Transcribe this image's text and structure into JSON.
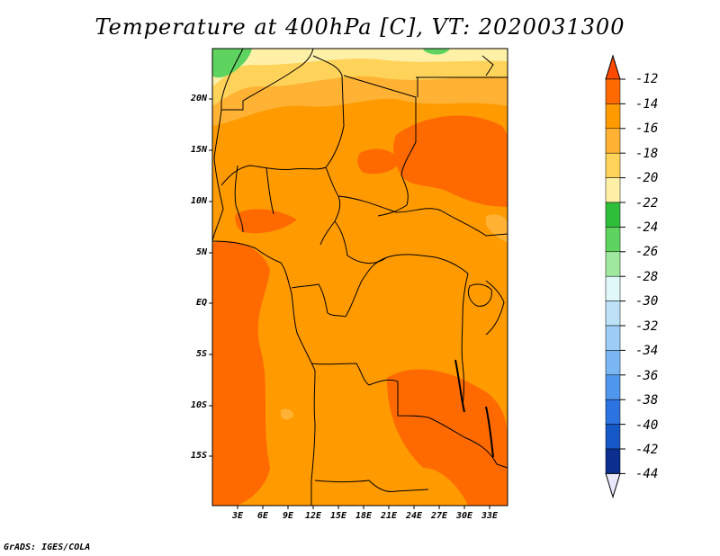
{
  "title": "Temperature at 400hPa [C], VT: 2020031300",
  "credit": "GrADS: IGES/COLA",
  "map": {
    "region": "Central Africa",
    "lat_range": [
      -20,
      25
    ],
    "lon_range": [
      0,
      35
    ],
    "ylabels": [
      "20N",
      "15N",
      "10N",
      "5N",
      "EQ",
      "5S",
      "10S",
      "15S"
    ],
    "xlabels": [
      "3E",
      "6E",
      "9E",
      "12E",
      "15E",
      "18E",
      "21E",
      "24E",
      "27E",
      "30E",
      "33E"
    ]
  },
  "colorbar": {
    "labels": [
      "-12",
      "-14",
      "-16",
      "-18",
      "-20",
      "-22",
      "-24",
      "-26",
      "-28",
      "-30",
      "-32",
      "-34",
      "-36",
      "-38",
      "-40",
      "-42",
      "-44"
    ],
    "colors": [
      "#ff6a00",
      "#ff9a00",
      "#ffb233",
      "#ffd35a",
      "#fff0a8",
      "#2fbe3a",
      "#5fd35f",
      "#9fe89f",
      "#e0f8f8",
      "#bde2f8",
      "#9dcdf6",
      "#7ab7f2",
      "#4f97ec",
      "#2c73e2",
      "#1758c8",
      "#0c2e8f"
    ],
    "top_color": "#ff4a00",
    "bottom_color": "#e8e8ff"
  }
}
